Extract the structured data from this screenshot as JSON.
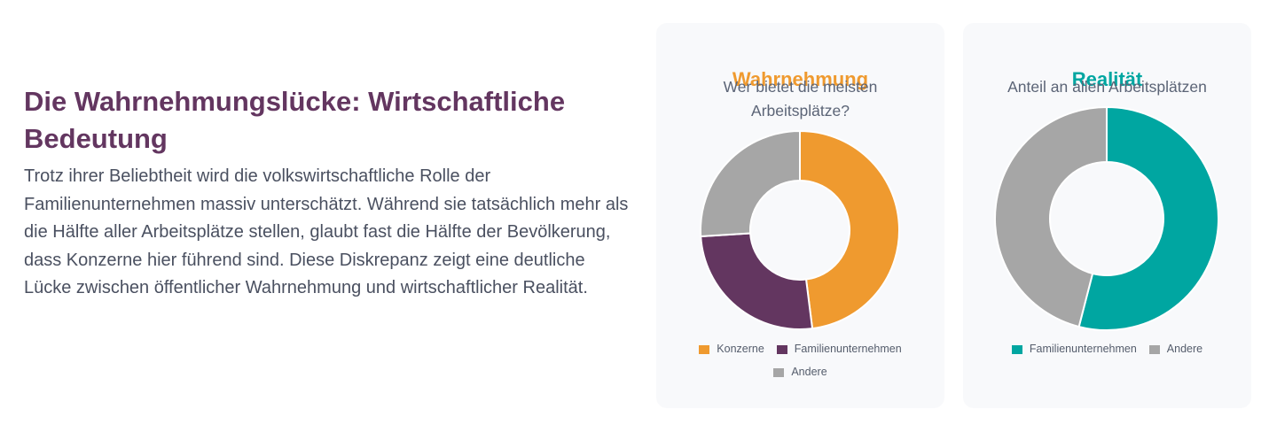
{
  "intro": {
    "heading": "Die Wahrnehmungslücke: Wirtschaftliche Bedeutung",
    "body": "Trotz ihrer Beliebtheit wird die volkswirtschaftliche Rolle der Familienunternehmen massiv unterschätzt. Während sie tatsächlich mehr als die Hälfte aller Arbeitsplätze stellen, glaubt fast die Hälfte der Bevölkerung, dass Konzerne hier führend sind. Diese Diskrepanz zeigt eine deutliche Lücke zwischen öffentlicher Wahrnehmung und wirtschaftlicher Realität."
  },
  "chart_data": [
    {
      "type": "pie",
      "title": "Wahrnehmung",
      "subtitle": "Wer bietet die meisten Arbeitsplätze?",
      "title_color": "#ef9a2f",
      "categories": [
        "Konzerne",
        "Familienunternehmen",
        "Andere"
      ],
      "values": [
        48,
        26,
        26
      ],
      "colors": [
        "#ef9a2f",
        "#633660",
        "#a6a6a6"
      ],
      "legend": "bottom"
    },
    {
      "type": "pie",
      "title": "Realität",
      "subtitle": "Anteil an allen Arbeitsplätzen",
      "title_color": "#00a6a1",
      "categories": [
        "Familienunternehmen",
        "Andere"
      ],
      "values": [
        54,
        46
      ],
      "colors": [
        "#00a6a1",
        "#a6a6a6"
      ],
      "legend": "bottom"
    }
  ]
}
